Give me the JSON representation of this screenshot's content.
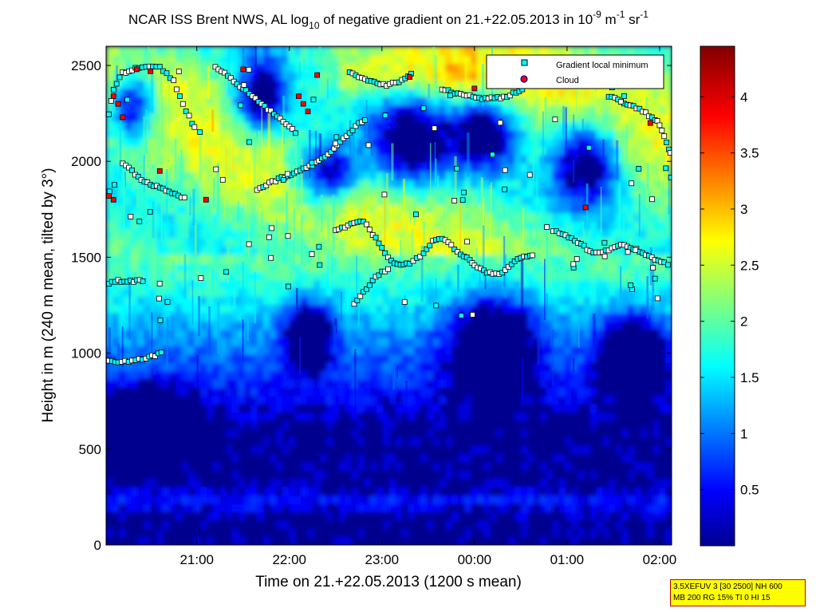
{
  "title": {
    "pre": "NCAR ISS Brent NWS, AL log",
    "sub": "10",
    "mid": " of negative gradient on 21.+22.05.2013 in 10",
    "sup1": "-9",
    "mid2": " m",
    "sup2": "-1",
    "mid3": " sr",
    "sup3": "-1"
  },
  "info_box": {
    "line1": "3.5XEFUV 3 [30 2500] NH 600",
    "line2": "MB 200 RG 15% TI 0 HI 15"
  },
  "chart_data": {
    "type": "heatmap",
    "xlabel": "Time on 21.+22.05.2013 (1200 s mean)",
    "ylabel": "Height in m (240 m mean, tilted by 3°)",
    "x_ticks": [
      {
        "t": 21.0,
        "label": "21:00"
      },
      {
        "t": 22.0,
        "label": "22:00"
      },
      {
        "t": 23.0,
        "label": "23:00"
      },
      {
        "t": 24.0,
        "label": "00:00"
      },
      {
        "t": 25.0,
        "label": "01:00"
      },
      {
        "t": 26.0,
        "label": "02:00"
      }
    ],
    "xlim": [
      20.02,
      26.13
    ],
    "ylim": [
      0,
      2600
    ],
    "y_ticks": [
      0,
      500,
      1000,
      1500,
      2000,
      2500
    ],
    "colorbar": {
      "range": [
        0,
        4.45
      ],
      "ticks": [
        0.5,
        1,
        1.5,
        2,
        2.5,
        3,
        3.5,
        4
      ],
      "colormap": "jet"
    },
    "legend": {
      "placement": "top-right",
      "entries": [
        {
          "label": "Gradient local minimum",
          "marker": "square",
          "color": "#00ffff"
        },
        {
          "label": "Cloud",
          "marker": "circle",
          "color": "#ff0000"
        }
      ]
    },
    "gradient_minimum_layers": [
      {
        "name": "upper",
        "points": [
          [
            20.05,
            2250
          ],
          [
            20.1,
            2380
          ],
          [
            20.2,
            2460
          ],
          [
            20.3,
            2480
          ],
          [
            20.45,
            2490
          ],
          [
            20.6,
            2490
          ],
          [
            20.75,
            2420
          ],
          [
            20.85,
            2300
          ],
          [
            20.95,
            2200
          ],
          [
            21.0,
            2160
          ]
        ]
      },
      {
        "name": "upper-mid",
        "points": [
          [
            21.2,
            2490
          ],
          [
            21.3,
            2460
          ],
          [
            21.4,
            2420
          ],
          [
            21.5,
            2380
          ],
          [
            21.6,
            2340
          ],
          [
            21.7,
            2300
          ],
          [
            21.8,
            2260
          ],
          [
            21.9,
            2220
          ],
          [
            22.0,
            2180
          ],
          [
            22.1,
            2140
          ]
        ]
      },
      {
        "name": "mid",
        "points": [
          [
            21.65,
            1850
          ],
          [
            21.75,
            1880
          ],
          [
            21.85,
            1900
          ],
          [
            21.95,
            1920
          ],
          [
            22.05,
            1940
          ],
          [
            22.15,
            1960
          ],
          [
            22.25,
            1980
          ],
          [
            22.35,
            2010
          ],
          [
            22.45,
            2050
          ],
          [
            22.55,
            2100
          ],
          [
            22.65,
            2150
          ],
          [
            22.75,
            2200
          ],
          [
            22.85,
            2220
          ]
        ]
      },
      {
        "name": "top-middle",
        "points": [
          [
            22.65,
            2470
          ],
          [
            22.75,
            2440
          ],
          [
            22.85,
            2420
          ],
          [
            22.95,
            2410
          ],
          [
            23.05,
            2400
          ],
          [
            23.15,
            2410
          ],
          [
            23.25,
            2430
          ],
          [
            23.35,
            2470
          ]
        ]
      },
      {
        "name": "top-right",
        "points": [
          [
            23.65,
            2380
          ],
          [
            23.75,
            2360
          ],
          [
            23.85,
            2350
          ],
          [
            23.95,
            2340
          ],
          [
            24.05,
            2330
          ],
          [
            24.15,
            2330
          ],
          [
            24.25,
            2330
          ],
          [
            24.35,
            2340
          ],
          [
            24.45,
            2360
          ],
          [
            24.55,
            2390
          ]
        ]
      },
      {
        "name": "right-upper",
        "points": [
          [
            25.45,
            2340
          ],
          [
            25.55,
            2320
          ],
          [
            25.65,
            2300
          ],
          [
            25.75,
            2280
          ],
          [
            25.85,
            2250
          ],
          [
            25.95,
            2220
          ],
          [
            26.0,
            2190
          ],
          [
            26.05,
            2130
          ],
          [
            26.1,
            2060
          ],
          [
            26.13,
            2030
          ]
        ]
      },
      {
        "name": "main-1500",
        "points": [
          [
            22.5,
            1640
          ],
          [
            22.6,
            1660
          ],
          [
            22.7,
            1680
          ],
          [
            22.8,
            1690
          ],
          [
            23.0,
            1550
          ],
          [
            23.1,
            1480
          ],
          [
            23.2,
            1460
          ],
          [
            23.3,
            1470
          ],
          [
            23.45,
            1520
          ],
          [
            23.55,
            1580
          ],
          [
            23.65,
            1600
          ],
          [
            23.75,
            1560
          ],
          [
            23.85,
            1520
          ],
          [
            23.95,
            1490
          ],
          [
            24.0,
            1460
          ],
          [
            24.1,
            1430
          ],
          [
            24.2,
            1410
          ],
          [
            24.3,
            1420
          ],
          [
            24.4,
            1460
          ],
          [
            24.5,
            1500
          ],
          [
            24.6,
            1510
          ],
          [
            24.65,
            1520
          ]
        ]
      },
      {
        "name": "main-1500-right",
        "points": [
          [
            24.85,
            1640
          ],
          [
            24.95,
            1620
          ],
          [
            25.05,
            1600
          ],
          [
            25.15,
            1570
          ],
          [
            25.25,
            1530
          ],
          [
            25.35,
            1520
          ],
          [
            25.45,
            1540
          ],
          [
            25.55,
            1560
          ],
          [
            25.65,
            1560
          ],
          [
            25.75,
            1540
          ],
          [
            25.85,
            1510
          ],
          [
            25.95,
            1490
          ],
          [
            26.05,
            1470
          ],
          [
            26.13,
            1450
          ]
        ]
      },
      {
        "name": "lower-rise",
        "points": [
          [
            22.7,
            1260
          ],
          [
            22.8,
            1320
          ],
          [
            22.9,
            1380
          ],
          [
            23.0,
            1420
          ],
          [
            23.1,
            1450
          ]
        ]
      },
      {
        "name": "left-1350",
        "points": [
          [
            20.05,
            1360
          ],
          [
            20.15,
            1380
          ],
          [
            20.25,
            1370
          ],
          [
            20.35,
            1380
          ],
          [
            20.45,
            1370
          ]
        ]
      },
      {
        "name": "left-950",
        "points": [
          [
            20.05,
            960
          ],
          [
            20.15,
            950
          ],
          [
            20.3,
            960
          ],
          [
            20.45,
            970
          ],
          [
            20.55,
            990
          ],
          [
            20.65,
            1010
          ]
        ]
      },
      {
        "name": "left-1900",
        "points": [
          [
            20.2,
            1990
          ],
          [
            20.3,
            1950
          ],
          [
            20.4,
            1900
          ],
          [
            20.5,
            1880
          ],
          [
            20.6,
            1860
          ],
          [
            20.7,
            1840
          ],
          [
            20.8,
            1820
          ],
          [
            20.9,
            1800
          ]
        ]
      }
    ],
    "cloud_points": [
      [
        20.1,
        2340
      ],
      [
        20.15,
        2300
      ],
      [
        20.35,
        2480
      ],
      [
        20.5,
        2470
      ],
      [
        20.05,
        1820
      ],
      [
        20.1,
        1800
      ],
      [
        20.2,
        2230
      ],
      [
        21.1,
        1800
      ],
      [
        22.1,
        2340
      ],
      [
        22.15,
        2300
      ],
      [
        22.2,
        2260
      ],
      [
        22.3,
        2450
      ],
      [
        24.0,
        2380
      ],
      [
        25.2,
        1760
      ],
      [
        25.9,
        2200
      ],
      [
        23.3,
        2440
      ],
      [
        21.5,
        2480
      ],
      [
        20.6,
        1950
      ]
    ]
  }
}
